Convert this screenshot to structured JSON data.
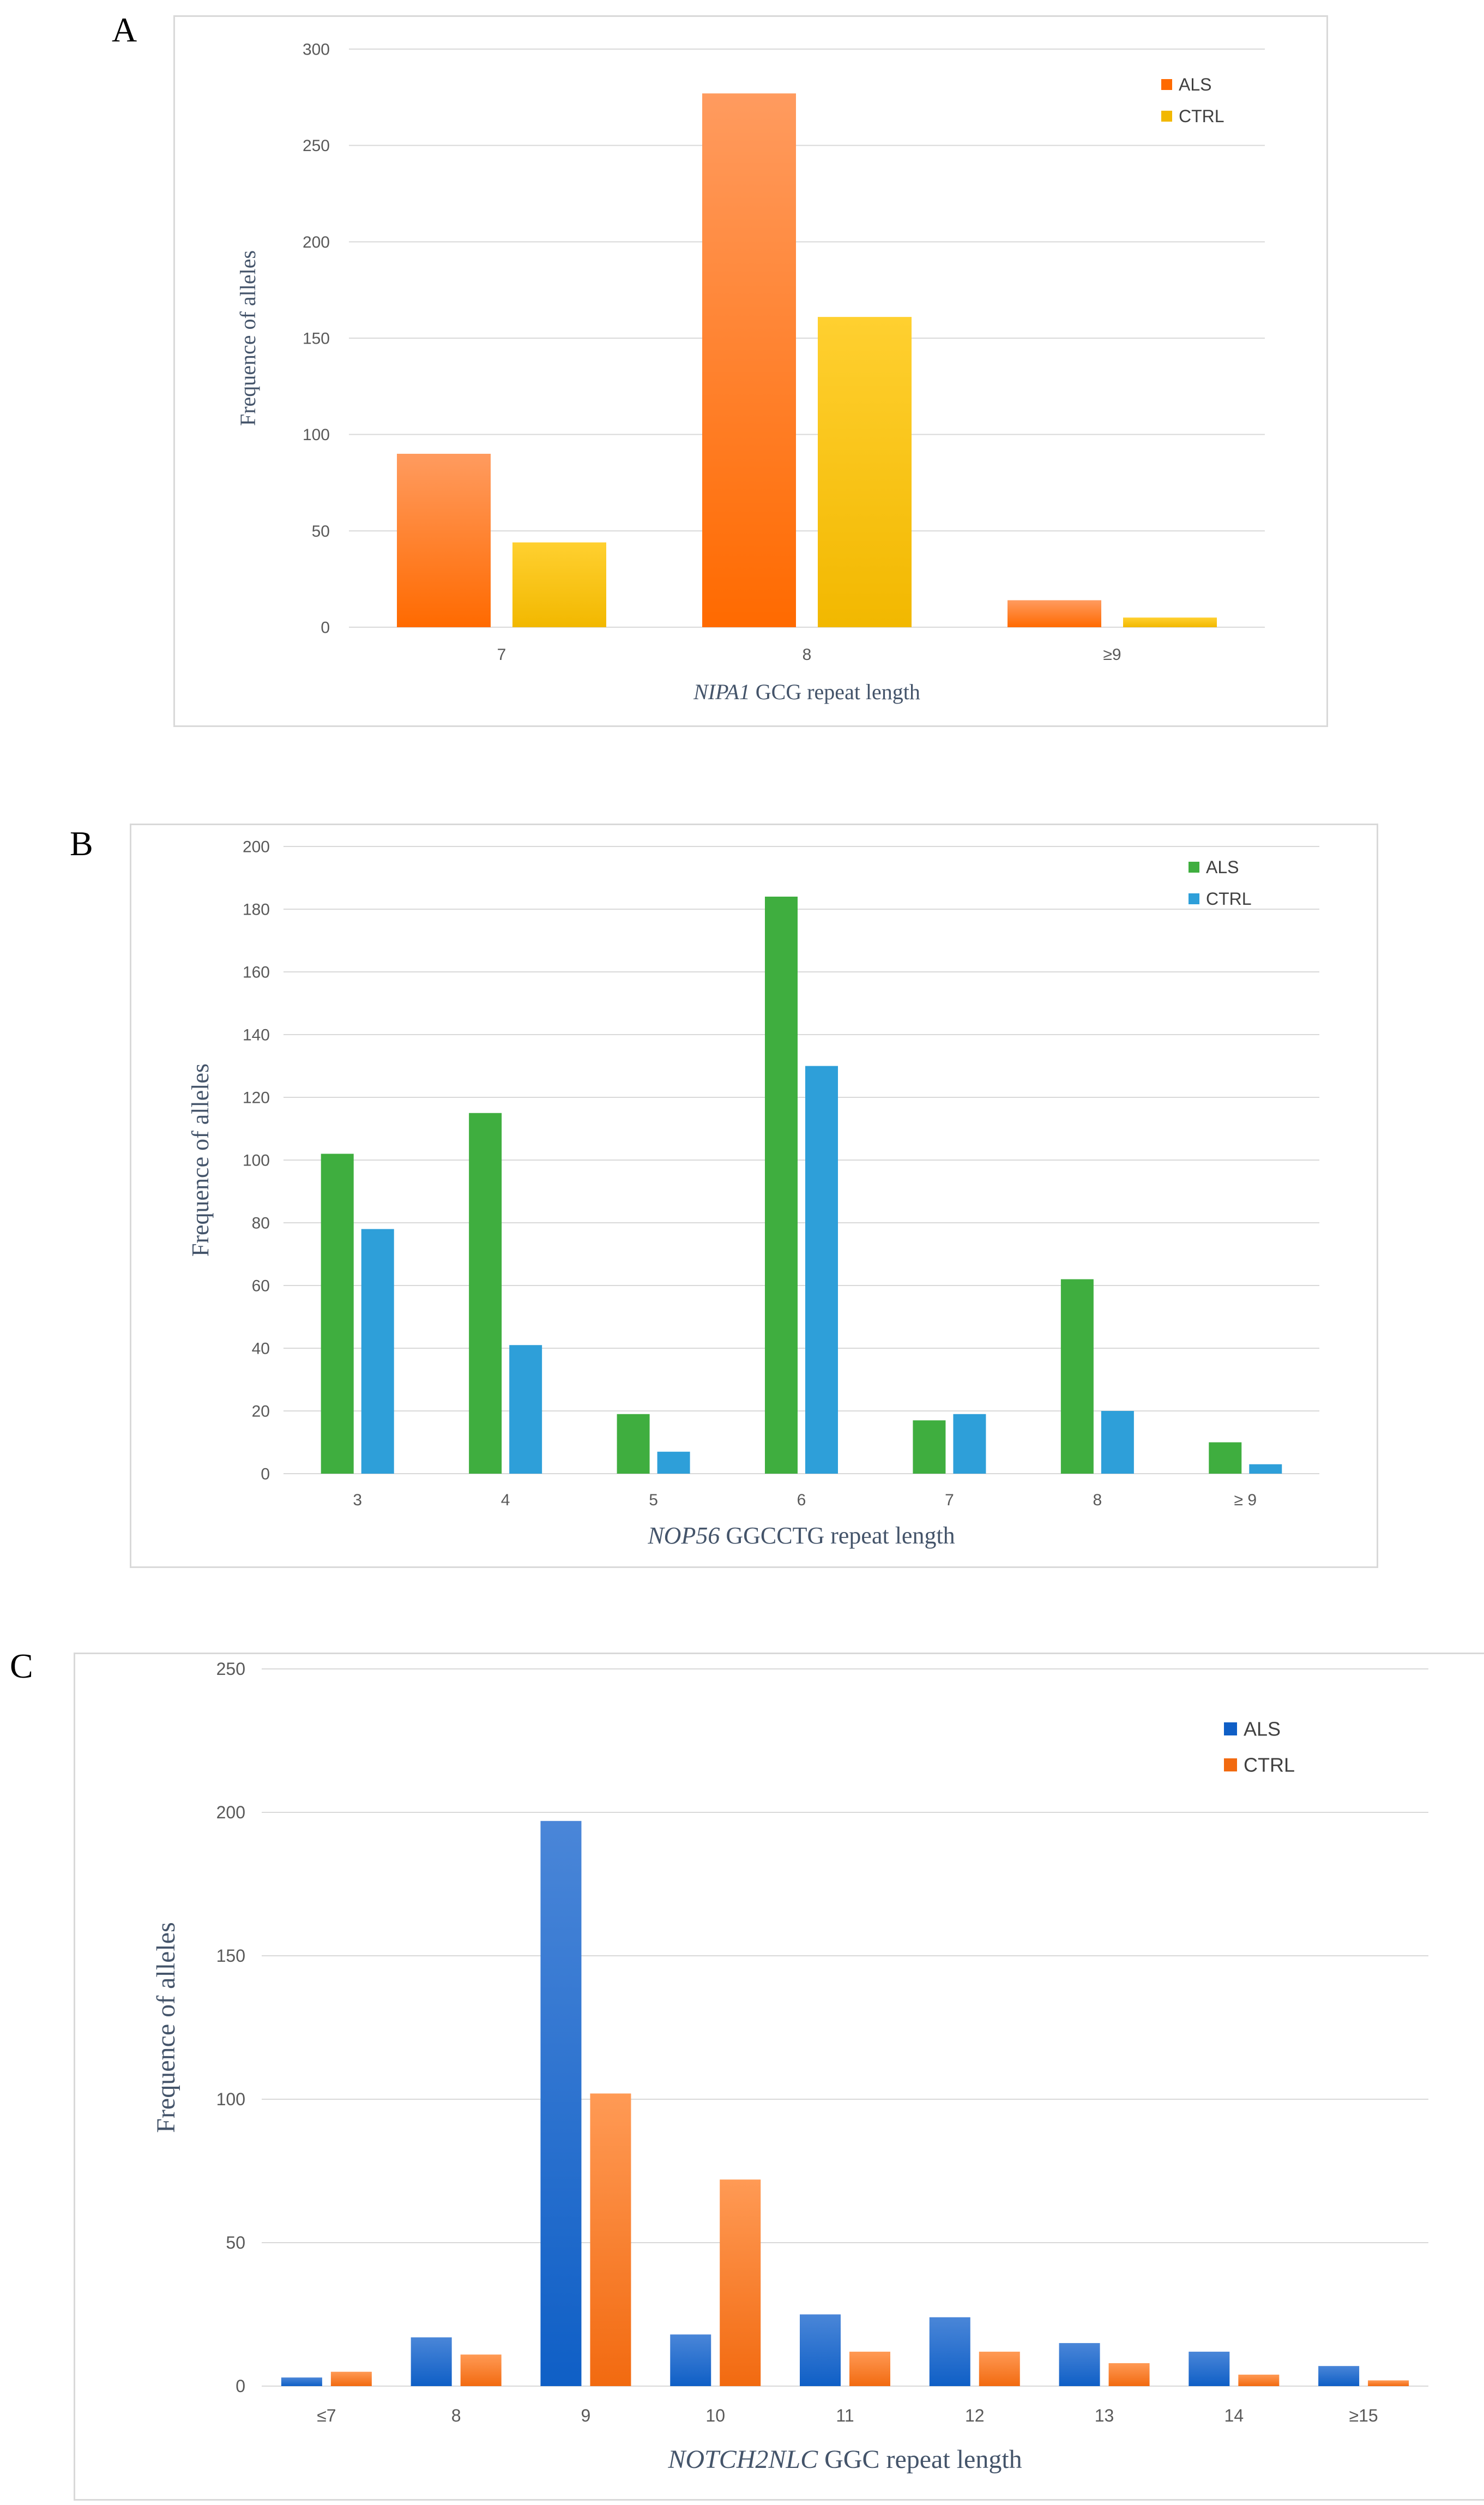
{
  "panels": [
    "A",
    "B",
    "C"
  ],
  "chart_data": [
    {
      "type": "bar",
      "title": "",
      "categories": [
        "7",
        "8",
        "≥9"
      ],
      "series": [
        {
          "name": "ALS",
          "values": [
            90,
            277,
            14
          ],
          "color_top": "#ff9b5f",
          "color_bottom": "#ff6a00"
        },
        {
          "name": "CTRL",
          "values": [
            44,
            161,
            5
          ],
          "color_top": "#ffd030",
          "color_bottom": "#f2b800"
        }
      ],
      "ylim": [
        0,
        300
      ],
      "yticks": [
        0,
        50,
        100,
        150,
        200,
        250,
        300
      ],
      "xlabel_italic": "NIPA1",
      "xlabel_rest": " GCG repeat length",
      "ylabel": "Frequence of alleles",
      "grid": true,
      "legend": "top-right"
    },
    {
      "type": "bar",
      "title": "",
      "categories": [
        "3",
        "4",
        "5",
        "6",
        "7",
        "8",
        "≥ 9"
      ],
      "series": [
        {
          "name": "ALS",
          "values": [
            102,
            115,
            19,
            184,
            17,
            62,
            10
          ],
          "color_top": "#3fae3f",
          "color_bottom": "#3fae3f"
        },
        {
          "name": "CTRL",
          "values": [
            78,
            41,
            7,
            130,
            19,
            20,
            3
          ],
          "color_top": "#2e9fd9",
          "color_bottom": "#2e9fd9"
        }
      ],
      "ylim": [
        0,
        200
      ],
      "yticks": [
        0,
        20,
        40,
        60,
        80,
        100,
        120,
        140,
        160,
        180,
        200
      ],
      "xlabel_italic": "NOP56",
      "xlabel_rest": " GGCCTG repeat length",
      "ylabel": "Frequence of alleles",
      "grid": true,
      "legend": "top-right"
    },
    {
      "type": "bar",
      "title": "",
      "categories": [
        "≤7",
        "8",
        "9",
        "10",
        "11",
        "12",
        "13",
        "14",
        "≥15"
      ],
      "series": [
        {
          "name": "ALS",
          "values": [
            3,
            17,
            197,
            18,
            25,
            24,
            15,
            12,
            7
          ],
          "color_top": "#4a86d8",
          "color_bottom": "#0f5fc6"
        },
        {
          "name": "CTRL",
          "values": [
            5,
            11,
            102,
            72,
            12,
            12,
            8,
            4,
            2
          ],
          "color_top": "#ff9a55",
          "color_bottom": "#f26a10"
        }
      ],
      "ylim": [
        0,
        250
      ],
      "yticks": [
        0,
        50,
        100,
        150,
        200,
        250
      ],
      "xlabel_italic": "NOTCH2NLC",
      "xlabel_rest": " GGC repeat length",
      "ylabel": "Frequence of alleles",
      "grid": true,
      "legend": "top-right"
    }
  ]
}
